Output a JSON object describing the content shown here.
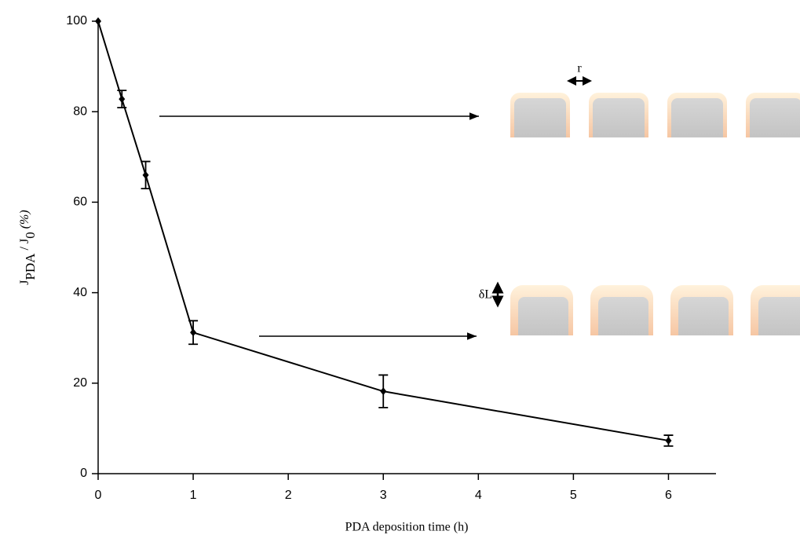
{
  "chart_data": {
    "type": "line",
    "xlabel": "PDA deposition time (h)",
    "ylabel": [
      "J",
      "PDA",
      " / J",
      "0",
      " (%)"
    ],
    "x": [
      0,
      0.25,
      0.5,
      1,
      3,
      6
    ],
    "values": [
      100,
      82.8,
      66,
      31.2,
      18.2,
      7.3
    ],
    "errors": [
      0,
      1.9,
      3,
      2.6,
      3.6,
      1.2
    ],
    "color": "#000000",
    "xlim": [
      0,
      6.5
    ],
    "xticks": [
      0,
      1,
      2,
      3,
      4,
      5,
      6
    ],
    "ylim": [
      0,
      100
    ],
    "yticks": [
      0,
      20,
      40,
      60,
      80,
      100
    ],
    "annotations": [
      "r",
      "δL"
    ]
  }
}
